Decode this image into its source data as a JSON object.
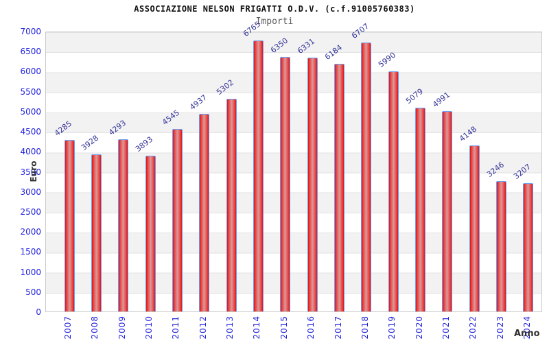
{
  "header": {
    "title": "ASSOCIAZIONE NELSON FRIGATTI O.D.V. (c.f.91005760383)",
    "subtitle": "Importi"
  },
  "chart_data": {
    "type": "bar",
    "title": "ASSOCIAZIONE NELSON FRIGATTI O.D.V. (c.f.91005760383)",
    "subtitle": "Importi",
    "xlabel": "Anno",
    "ylabel": "Euro",
    "categories": [
      "2007",
      "2008",
      "2009",
      "2010",
      "2011",
      "2012",
      "2013",
      "2014",
      "2015",
      "2016",
      "2017",
      "2018",
      "2019",
      "2020",
      "2021",
      "2022",
      "2023",
      "2024"
    ],
    "values": [
      4285,
      3928,
      4293,
      3893,
      4545,
      4937,
      5302,
      6765,
      6350,
      6331,
      6184,
      6707,
      5990,
      5079,
      4991,
      4148,
      3246,
      3207
    ],
    "ylim": [
      0,
      7000
    ],
    "ytick_step": 500,
    "grid": true,
    "legend_position": "none",
    "value_labels_shown": true,
    "colors": {
      "bar_fill_edge": "#e01414",
      "bar_fill_center": "#d99a9a",
      "bar_border": "#6b9ff2",
      "axis_tick_label": "#2222dd",
      "value_label": "#333399",
      "band_stripe": "#f2f2f2",
      "grid_line": "#e2e2e2",
      "title": "#111111",
      "subtitle": "#5a5a5a",
      "axis_title": "#333333"
    }
  }
}
